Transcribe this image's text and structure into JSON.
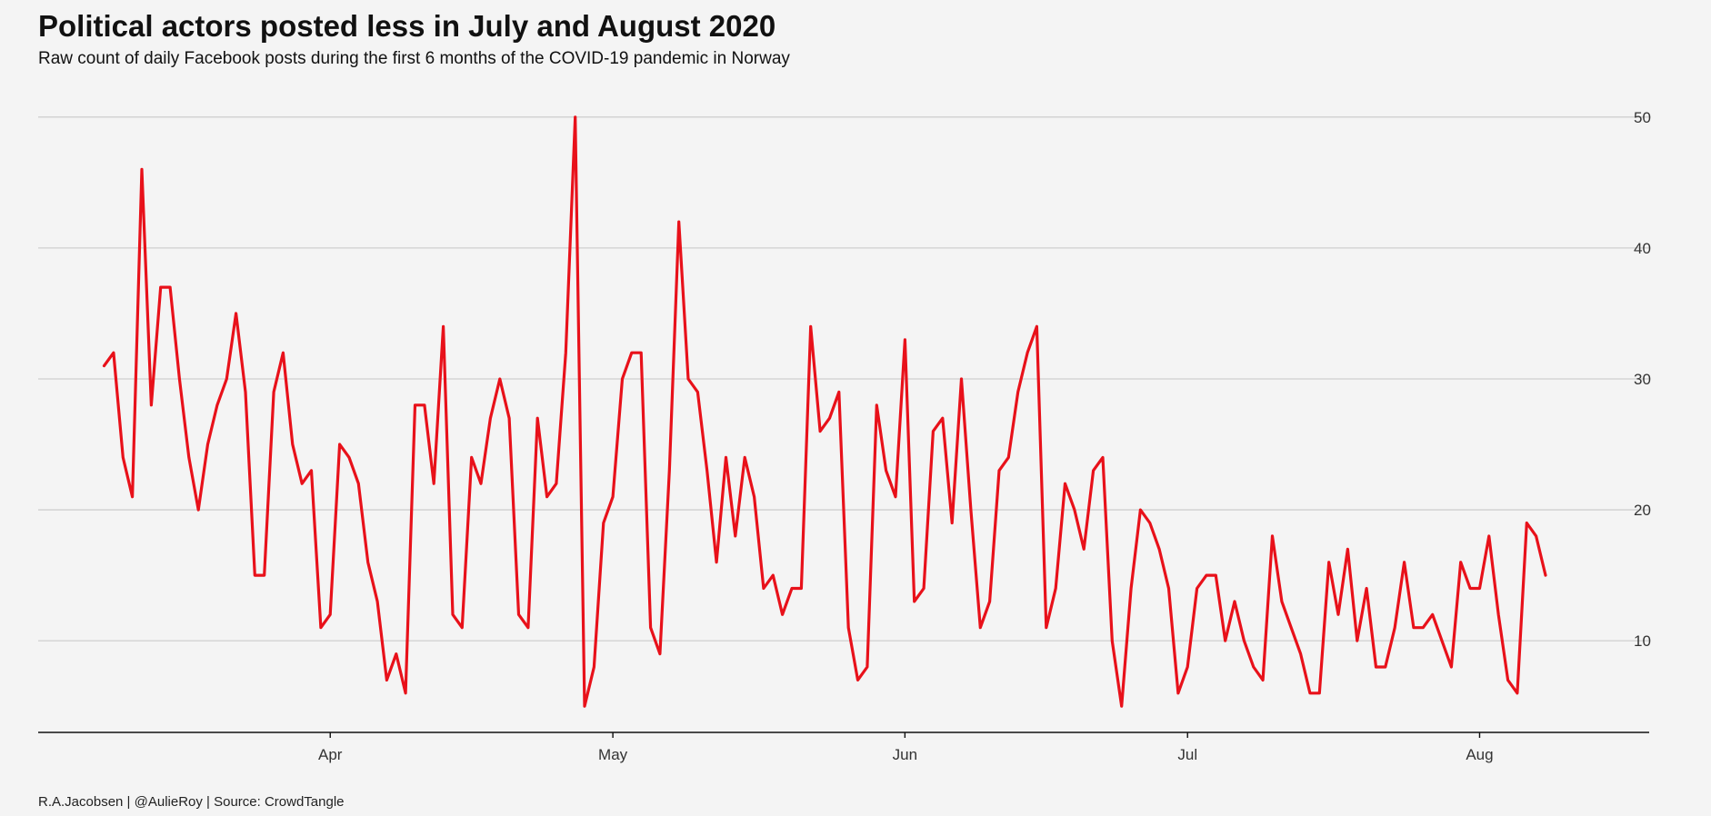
{
  "chart_data": {
    "type": "line",
    "title": "Political actors posted less in July and August 2020",
    "subtitle": "Raw count of daily Facebook posts during the first 6 months of the COVID-19 pandemic in Norway",
    "caption": "R.A.Jacobsen | @AulieRoy | Source: CrowdTangle",
    "xlabel": "",
    "ylabel": "",
    "x_start": "2020-03-08",
    "x_end": "2020-08-12",
    "xlim": [
      "2020-03-01",
      "2020-08-19"
    ],
    "ylim": [
      3,
      52
    ],
    "y_ticks": [
      10,
      20,
      30,
      40,
      50
    ],
    "x_ticks": [
      {
        "date": "2020-04-01",
        "label": "Apr"
      },
      {
        "date": "2020-05-01",
        "label": "May"
      },
      {
        "date": "2020-06-01",
        "label": "Jun"
      },
      {
        "date": "2020-07-01",
        "label": "Jul"
      },
      {
        "date": "2020-08-01",
        "label": "Aug"
      }
    ],
    "grid": "horizontal",
    "y_axis_position": "right",
    "line_color": "#e8111a",
    "series": [
      {
        "values": [
          31,
          32,
          24,
          21,
          46,
          28,
          37,
          37,
          30,
          24,
          20,
          25,
          28,
          30,
          35,
          29,
          15,
          15,
          29,
          32,
          25,
          22,
          23,
          11,
          12,
          25,
          24,
          22,
          16,
          13,
          7,
          9,
          6,
          28,
          28,
          22,
          34,
          12,
          11,
          24,
          22,
          27,
          30,
          27,
          12,
          11,
          27,
          21,
          22,
          32,
          50,
          5,
          8,
          19,
          21,
          30,
          32,
          32,
          11,
          9,
          23,
          42,
          30,
          29,
          23,
          16,
          24,
          18,
          24,
          21,
          14,
          15,
          12,
          14,
          14,
          34,
          26,
          27,
          29,
          11,
          7,
          8,
          28,
          23,
          21,
          33,
          13,
          14,
          26,
          27,
          19,
          30,
          20,
          11,
          13,
          23,
          24,
          29,
          32,
          34,
          11,
          14,
          22,
          20,
          17,
          23,
          24,
          10,
          5,
          14,
          20,
          19,
          17,
          14,
          6,
          8,
          14,
          15,
          15,
          10,
          13,
          10,
          8,
          7,
          18,
          13,
          11,
          9,
          6,
          6,
          16,
          12,
          17,
          10,
          14,
          8,
          8,
          11,
          16,
          11,
          11,
          12,
          10,
          8,
          16,
          14,
          14,
          18,
          12,
          7,
          6,
          19,
          18,
          15
        ]
      }
    ]
  }
}
